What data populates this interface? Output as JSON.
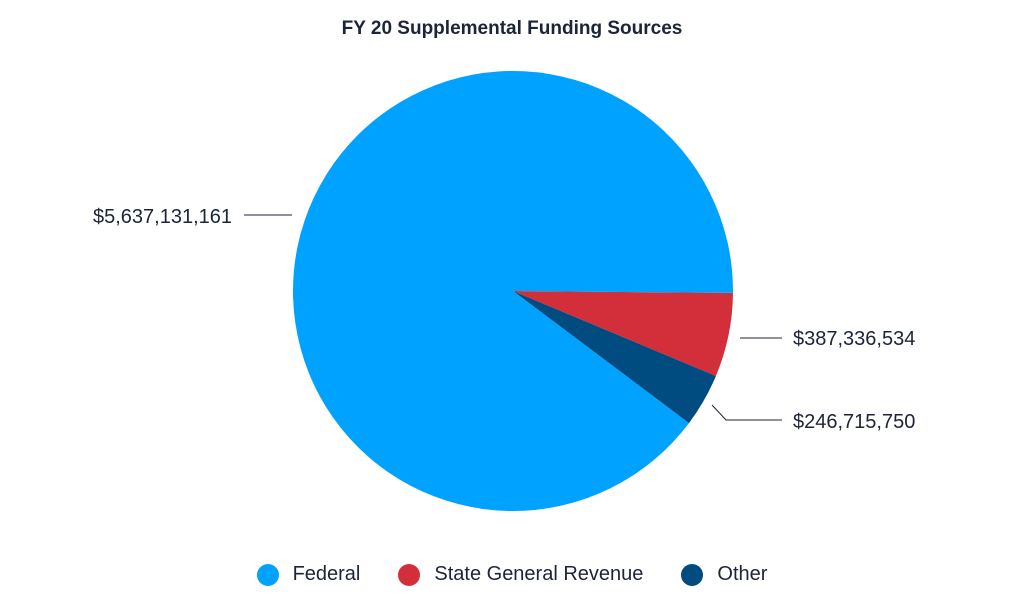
{
  "chart_data": {
    "type": "pie",
    "title": "FY 20 Supplemental Funding Sources",
    "slices": [
      {
        "name": "State General Revenue",
        "value": 387336534,
        "label": "$387,336,534",
        "color": "#d32f3b"
      },
      {
        "name": "Other",
        "value": 246715750,
        "label": "$246,715,750",
        "color": "#004b80"
      },
      {
        "name": "Federal",
        "value": 5637131161,
        "label": "$5,637,131,161",
        "color": "#00a2ff"
      }
    ],
    "legend": {
      "placement": "bottom",
      "items": [
        "Federal",
        "State General Revenue",
        "Other"
      ]
    },
    "legend_colors": [
      "#00a2ff",
      "#d32f3b",
      "#004b80"
    ]
  }
}
